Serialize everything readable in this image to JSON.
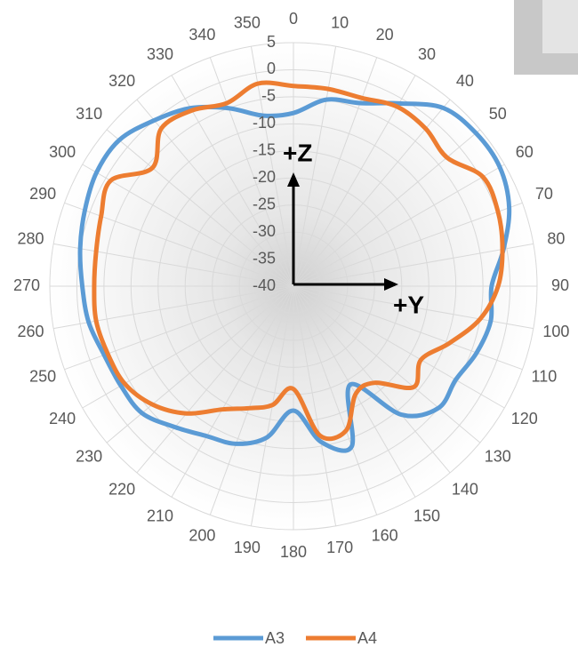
{
  "chart_data": {
    "type": "radar",
    "categories": [
      "0",
      "10",
      "20",
      "30",
      "40",
      "50",
      "60",
      "70",
      "80",
      "90",
      "100",
      "110",
      "120",
      "130",
      "140",
      "150",
      "160",
      "170",
      "180",
      "190",
      "200",
      "210",
      "220",
      "230",
      "240",
      "250",
      "260",
      "270",
      "280",
      "290",
      "300",
      "310",
      "320",
      "330",
      "340",
      "350"
    ],
    "series": [
      {
        "name": "A3",
        "color": "#5b9bd5",
        "values": [
          -8,
          -5,
          -4,
          -1,
          3,
          4,
          4,
          2.4,
          -0.6,
          -3.4,
          -3,
          -4,
          -5.4,
          -5,
          -9,
          -19,
          -8.5,
          -10.8,
          -17,
          -11.6,
          -9,
          -8,
          -6,
          -3.5,
          -3.2,
          -2.8,
          -1.6,
          -1,
          0,
          1,
          2,
          2,
          0,
          -2,
          -5,
          -8
        ]
      },
      {
        "name": "A4",
        "color": "#ed7d31",
        "values": [
          -3,
          -3,
          -3,
          -1.7,
          -2,
          -3,
          0.4,
          0.2,
          -0.8,
          -2.2,
          -5,
          -9.3,
          -12.8,
          -11,
          -16.7,
          -17,
          -11.6,
          -12,
          -21,
          -17.7,
          -16,
          -13.7,
          -9.3,
          -6,
          -4,
          -3.5,
          -3,
          -3.2,
          -3,
          -2.2,
          -1,
          -6,
          -2,
          -2.5,
          -4,
          -2
        ]
      }
    ],
    "rlim": [
      -40,
      5
    ],
    "rticks": [
      -40,
      -35,
      -30,
      -25,
      -20,
      -15,
      -10,
      -5,
      0,
      5
    ],
    "grid": true,
    "legend": "bottom",
    "annotations": [
      "+Z",
      "+Y"
    ]
  }
}
